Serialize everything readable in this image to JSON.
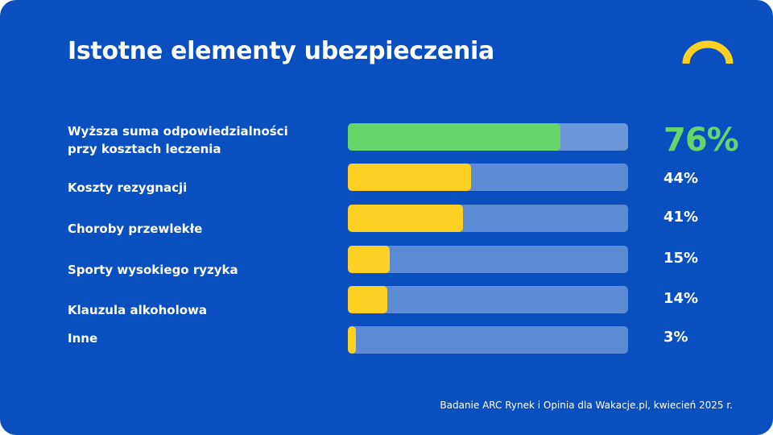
{
  "title": "Istotne elementy ubezpieczenia",
  "source": "Badanie ARC Rynek i Opinia dla Wakacje.pl, kwiecień 2025 r.",
  "colors": {
    "background": "#0a4fbf",
    "bar": "#fdd023",
    "highlight": "#66d66a",
    "track": "#5b8bd4",
    "logo": "#fdd023"
  },
  "logo": {
    "icon": "yellow-arc-logo-icon"
  },
  "chart_data": {
    "type": "bar",
    "orientation": "horizontal",
    "categories": [
      "Wyższa suma odpowiedzialności\nprzy kosztach leczenia",
      "Koszty rezygnacji",
      "Choroby przewlekłe",
      "Sporty wysokiego ryzyka",
      "Klauzula alkoholowa",
      "Inne"
    ],
    "values": [
      76,
      44,
      41,
      15,
      14,
      3
    ],
    "value_labels": [
      "76%",
      "44%",
      "41%",
      "15%",
      "14%",
      "3%"
    ],
    "highlighted_index": 0,
    "xlim": [
      0,
      100
    ],
    "title": "Istotne elementy ubezpieczenia",
    "grid": false
  }
}
